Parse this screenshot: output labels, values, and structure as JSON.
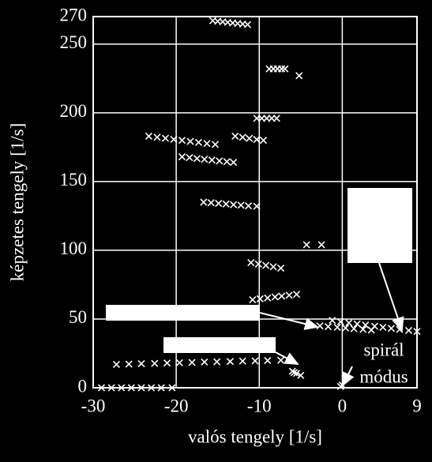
{
  "chart_data": {
    "type": "scatter",
    "xlabel": "valós tengely [1/s]",
    "ylabel": "képzetes tengely [1/s]",
    "annotation_lines": [
      "spirál",
      "módus"
    ],
    "color": "#ffffff",
    "background": "#000000",
    "grid": true,
    "xlim": [
      -30,
      9
    ],
    "xticks": [
      -30,
      -20,
      -10,
      0,
      9
    ],
    "ylim": [
      0,
      270
    ],
    "yticks": [
      0,
      50,
      100,
      150,
      200,
      250,
      270
    ],
    "x": [
      -15.6,
      -15.0,
      -14.4,
      -13.8,
      -13.2,
      -12.6,
      -12.0,
      -11.4,
      -8.8,
      -8.3,
      -7.8,
      -7.3,
      -6.9,
      -5.2,
      -10.3,
      -9.7,
      -9.1,
      -8.5,
      -7.9,
      -12.9,
      -12.0,
      -11.2,
      -10.3,
      -9.5,
      -23.3,
      -22.3,
      -21.3,
      -20.3,
      -19.3,
      -18.3,
      -17.3,
      -16.3,
      -15.3,
      -19.3,
      -18.4,
      -17.5,
      -16.6,
      -15.7,
      -14.8,
      -13.9,
      -13.1,
      -16.7,
      -15.8,
      -14.9,
      -14.0,
      -13.1,
      -12.2,
      -11.3,
      -10.3,
      -4.3,
      -2.5,
      -11.0,
      -10.1,
      -9.2,
      -8.3,
      -7.4,
      -10.8,
      -9.9,
      -9.0,
      -8.1,
      -7.3,
      -6.4,
      -5.5,
      -1.2,
      -0.2,
      0.8,
      1.8,
      2.8,
      3.9,
      4.9,
      5.9,
      6.9,
      8.0,
      9.0,
      -2.7,
      -1.7,
      -0.6,
      0.4,
      1.4,
      2.5,
      3.5,
      -27.2,
      -25.7,
      -24.2,
      -22.6,
      -21.1,
      -19.6,
      -18.1,
      -16.6,
      -15.1,
      -13.5,
      -12.0,
      -10.5,
      -9.0,
      -7.4,
      -29,
      -27.8,
      -26.6,
      -25.4,
      -24.2,
      -23.0,
      -21.8,
      -20.5,
      -6.0,
      -5.5,
      -5.0,
      -5.8,
      0,
      -0.2
    ],
    "values": [
      267,
      266.6,
      266.2,
      265.8,
      265.4,
      265,
      264.6,
      264.2,
      232,
      232,
      232,
      232,
      232,
      227,
      196,
      196,
      196,
      196,
      196,
      183,
      182.2,
      181.4,
      180.6,
      180,
      183,
      182.2,
      181.5,
      180.7,
      180,
      179.2,
      178.5,
      177.7,
      177,
      168,
      167.4,
      166.8,
      166.2,
      165.6,
      165,
      164.5,
      164,
      135,
      134.6,
      134.1,
      133.7,
      133.2,
      132.8,
      132.3,
      132,
      104,
      104,
      91,
      90,
      89,
      88,
      87,
      64,
      64.7,
      65.3,
      66,
      66.7,
      67.3,
      68,
      49,
      48,
      47.2,
      46.4,
      45.6,
      44.8,
      44,
      43.2,
      42.4,
      41.7,
      41,
      45,
      44.5,
      44,
      43.5,
      43,
      42.5,
      42,
      17,
      17.2,
      17.5,
      17.7,
      18,
      18.2,
      18.4,
      18.7,
      18.9,
      19.1,
      19.4,
      19.6,
      19.8,
      20,
      0,
      0,
      0,
      0,
      0,
      0,
      0,
      0,
      12,
      10.5,
      9,
      11,
      2,
      1
    ]
  }
}
